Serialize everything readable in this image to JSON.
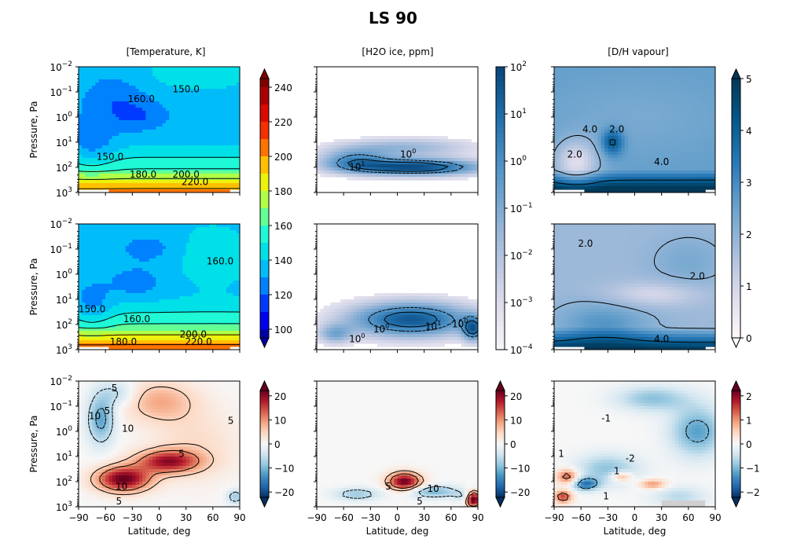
{
  "title": "LS 90",
  "chart_data": {
    "type": "heatmap",
    "title": "LS 90",
    "columns": [
      {
        "header": "[Temperature, K]"
      },
      {
        "header": "[H2O ice, ppm]"
      },
      {
        "header": "[D/H vapour]"
      }
    ],
    "ylabel": "Pressure, Pa",
    "xlabel": "Latitude, deg",
    "x_ticks": [
      "−90",
      "−60",
      "−30",
      "0",
      "30",
      "60",
      "90"
    ],
    "y_ticks": [
      {
        "base": "10",
        "exp": "−2"
      },
      {
        "base": "10",
        "exp": "−1"
      },
      {
        "base": "10",
        "exp": "0"
      },
      {
        "base": "10",
        "exp": "1"
      },
      {
        "base": "10",
        "exp": "2"
      },
      {
        "base": "10",
        "exp": "3"
      }
    ],
    "xlim": [
      -90,
      90
    ],
    "ylim": [
      1000,
      0.01
    ],
    "y_scale": "log",
    "colorbars": [
      {
        "name": "temperature",
        "ticks": [
          "100",
          "120",
          "140",
          "160",
          "180",
          "200",
          "220",
          "240"
        ],
        "range": [
          95,
          245
        ],
        "scale": "linear",
        "extend": "both",
        "colors": [
          "#0000a8",
          "#0000ff",
          "#0060ff",
          "#00b4ff",
          "#00e0e8",
          "#28ffd0",
          "#8cff6c",
          "#e8ff10",
          "#ffc000",
          "#ff6000",
          "#f01000",
          "#b80000",
          "#800000"
        ]
      },
      {
        "name": "h2o_ice",
        "ticks": [
          "10^-4",
          "10^-3",
          "10^-2",
          "10^-1",
          "10^0",
          "10^1",
          "10^2"
        ],
        "range": [
          -4,
          2
        ],
        "scale": "log",
        "colors": [
          "#f7f4fa",
          "#dcdbeb",
          "#b3c3de",
          "#7eaad2",
          "#4c8fc4",
          "#1e6ca8",
          "#08457a"
        ]
      },
      {
        "name": "dh_vapour",
        "ticks": [
          "0",
          "1",
          "2",
          "3",
          "4",
          "5"
        ],
        "range": [
          0,
          5
        ],
        "scale": "linear",
        "extend": "both",
        "colors": [
          "#fff7fb",
          "#dcdbeb",
          "#a6bddb",
          "#6ba3cd",
          "#2b7bba",
          "#045a8d",
          "#023858"
        ]
      },
      {
        "name": "diff_temperature",
        "ticks": [
          "−20",
          "−10",
          "0",
          "10",
          "20"
        ],
        "range": [
          -20,
          20
        ],
        "scale": "linear",
        "extend": "both"
      },
      {
        "name": "diff_h2o_ice",
        "ticks": [
          "−20",
          "−10",
          "0",
          "10",
          "20"
        ],
        "range": [
          -20,
          20
        ],
        "scale": "linear",
        "extend": "both"
      },
      {
        "name": "diff_dh",
        "ticks": [
          "−2",
          "−1",
          "0",
          "1",
          "2"
        ],
        "range": [
          -2,
          2
        ],
        "scale": "linear",
        "extend": "both",
        "colors": [
          "#053061",
          "#2166ac",
          "#4393c3",
          "#92c5de",
          "#d1e5f0",
          "#f7f7f7",
          "#fddbc7",
          "#f4a582",
          "#d6604d",
          "#b2182b",
          "#67001f"
        ]
      }
    ],
    "contour_labels": {
      "temp_top": [
        "150.0",
        "150.0",
        "180.0",
        "200.0",
        "220.0",
        "160.0"
      ],
      "temp_mid": [
        "160.0",
        "150.0",
        "160.0",
        "180.0",
        "200.0",
        "220.0"
      ],
      "temp_diff": [
        "5",
        "5",
        "10",
        "10",
        "5",
        "5",
        "10",
        "5"
      ],
      "ice_top": [
        "10^1",
        "10^0"
      ],
      "ice_mid": [
        "10^0",
        "10^0",
        "10^1",
        "10^0"
      ],
      "ice_diff": [
        "5",
        "5",
        "10"
      ],
      "dh_top": [
        "4.0",
        "2.0",
        "2.0",
        "4.0"
      ],
      "dh_mid": [
        "2.0",
        "2.0",
        "4.0"
      ],
      "dh_diff": [
        "-1",
        "1",
        "-2",
        "1",
        "1"
      ]
    }
  }
}
